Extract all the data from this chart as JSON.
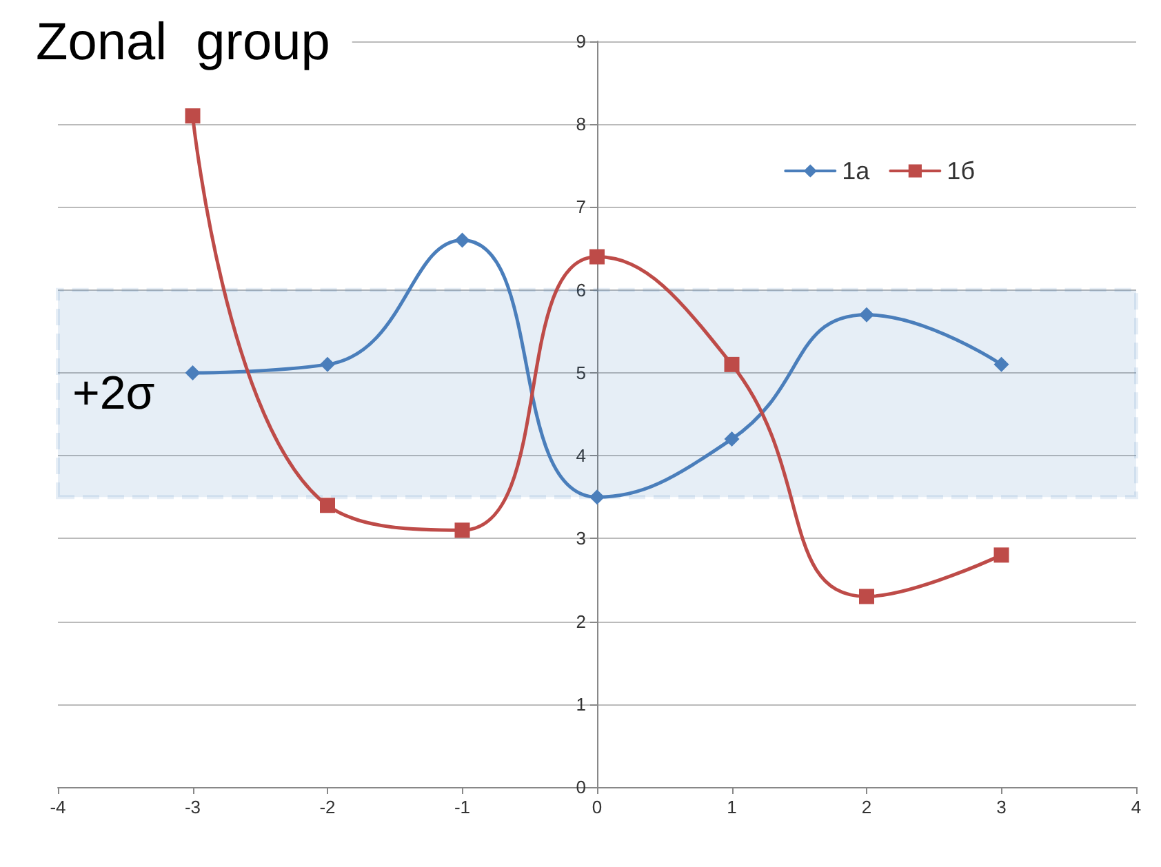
{
  "chart_data": {
    "type": "line",
    "title": "Zonal  group",
    "x": [
      -3,
      -2,
      -1,
      0,
      1,
      2,
      3
    ],
    "series": [
      {
        "name": "1а",
        "color": "#4a7ebb",
        "marker": "diamond",
        "values": [
          5.0,
          5.1,
          6.6,
          3.5,
          4.2,
          5.7,
          5.1
        ]
      },
      {
        "name": "1б",
        "color": "#be4b48",
        "marker": "square",
        "values": [
          8.1,
          3.4,
          3.1,
          6.4,
          5.1,
          2.3,
          2.8
        ]
      }
    ],
    "xlim": [
      -4,
      4
    ],
    "xticks": [
      -4,
      -3,
      -2,
      -1,
      0,
      1,
      2,
      3,
      4
    ],
    "ylim": [
      0,
      9
    ],
    "yticks": [
      0,
      1,
      2,
      3,
      4,
      5,
      6,
      7,
      8,
      9
    ],
    "grid": "y",
    "legend": "top right",
    "line_style": "solid",
    "bands": [
      {
        "axis": "y",
        "from": 3.5,
        "to": 6,
        "label": "+2σ",
        "color": "#2e75b6"
      }
    ]
  }
}
